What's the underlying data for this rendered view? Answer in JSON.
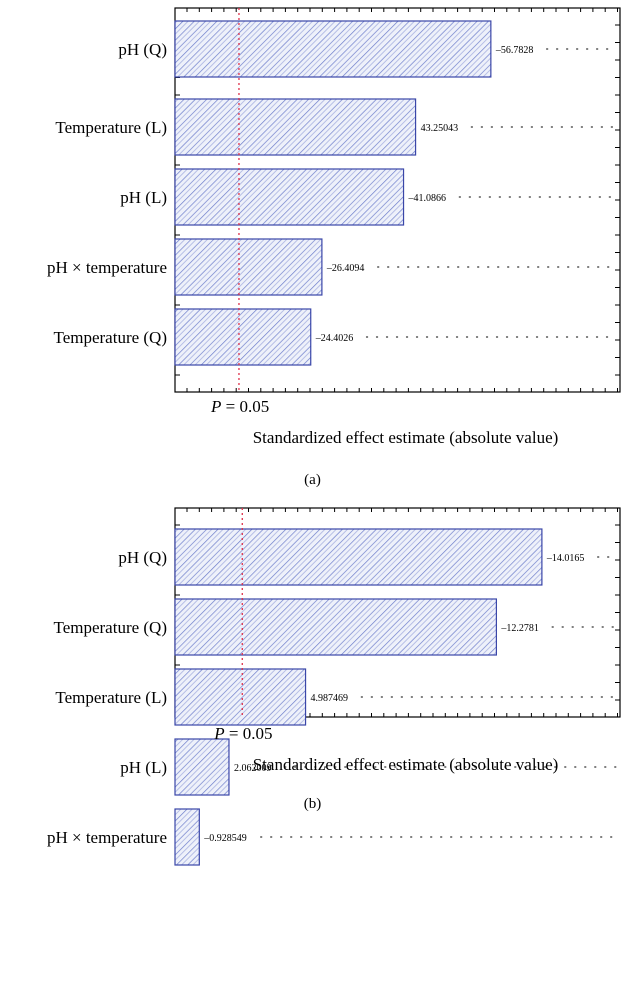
{
  "chart_data": [
    {
      "type": "bar",
      "orientation": "horizontal",
      "panel_label": "(a)",
      "categories": [
        "pH (Q)",
        "Temperature (L)",
        "pH (L)",
        "pH × temperature",
        "Temperature (Q)"
      ],
      "values": [
        56.7828,
        43.25043,
        41.0866,
        26.4094,
        24.4026
      ],
      "value_labels": [
        "–56.7828",
        "43.25043",
        "–41.0866",
        "–26.4094",
        "–24.4026"
      ],
      "xlim": [
        0,
        80
      ],
      "threshold": 11.5,
      "threshold_label_prefix": "P",
      "threshold_label_value": "= 0.05",
      "xlabel": "Standardized effect estimate (absolute value)",
      "grid": false
    },
    {
      "type": "bar",
      "orientation": "horizontal",
      "panel_label": "(b)",
      "categories": [
        "pH (Q)",
        "Temperature (Q)",
        "Temperature (L)",
        "pH (L)",
        "pH × temperature"
      ],
      "values": [
        14.0165,
        12.2781,
        4.987469,
        2.062009,
        0.928549
      ],
      "value_labels": [
        "–14.0165",
        "–12.2781",
        "4.987469",
        "2.062009",
        "–0.928549"
      ],
      "xlim": [
        0,
        17
      ],
      "threshold": 2.57,
      "threshold_label_prefix": "P",
      "threshold_label_value": "= 0.05",
      "xlabel": "Standardized effect estimate (absolute value)",
      "grid": false
    }
  ],
  "colors": {
    "bar_stroke": "#3a46a8",
    "bar_fill": "#e8ecf8",
    "hatch": "#5c6cc4",
    "threshold": "#e0304a",
    "dots": "#333333"
  }
}
